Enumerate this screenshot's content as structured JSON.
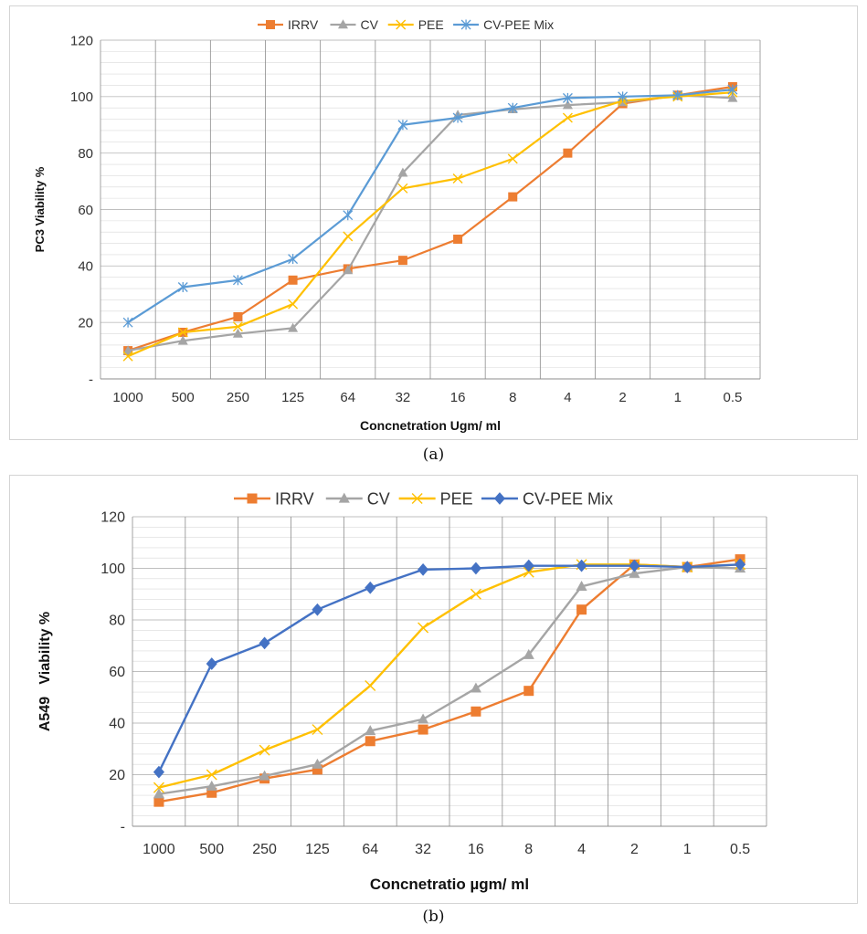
{
  "chart_data": [
    {
      "type": "line",
      "title": "",
      "caption": "(a)",
      "xlabel": "Concnetration Ugm/ ml",
      "ylabel": "PC3 Viability %",
      "categories": [
        "1000",
        "500",
        "250",
        "125",
        "64",
        "32",
        "16",
        "8",
        "4",
        "2",
        "1",
        "0.5"
      ],
      "yticks": [
        "-",
        "20",
        "40",
        "60",
        "80",
        "100",
        "120"
      ],
      "ylim": [
        0,
        120
      ],
      "grid": true,
      "legend": "top-center",
      "series": [
        {
          "name": "IRRV",
          "color": "#ED7D31",
          "marker": "square",
          "values": [
            10,
            16.5,
            22,
            35,
            39,
            42,
            49.5,
            64.5,
            80,
            97.5,
            100.5,
            103.5
          ]
        },
        {
          "name": "CV",
          "color": "#A5A5A5",
          "marker": "triangle",
          "values": [
            10,
            13.5,
            16,
            18,
            38.5,
            73,
            93.5,
            95.5,
            97,
            98,
            100.5,
            99.5
          ]
        },
        {
          "name": "PEE",
          "color": "#FFC000",
          "marker": "x",
          "values": [
            8,
            16.5,
            18.5,
            26.5,
            50.5,
            67.5,
            71,
            78,
            92.5,
            98.5,
            100,
            101.5
          ]
        },
        {
          "name": "CV-PEE Mix",
          "color": "#5B9BD5",
          "marker": "star",
          "values": [
            20,
            32.5,
            35,
            42.5,
            58,
            90,
            92.5,
            96,
            99.5,
            100,
            100.5,
            102.5
          ]
        }
      ]
    },
    {
      "type": "line",
      "title": "",
      "caption": "(b)",
      "xlabel": "Concnetratio µgm/ ml",
      "ylabel": "A549   Viability %",
      "categories": [
        "1000",
        "500",
        "250",
        "125",
        "64",
        "32",
        "16",
        "8",
        "4",
        "2",
        "1",
        "0.5"
      ],
      "yticks": [
        "-",
        "20",
        "40",
        "60",
        "80",
        "100",
        "120"
      ],
      "ylim": [
        0,
        120
      ],
      "grid": true,
      "legend": "top-center",
      "series": [
        {
          "name": "IRRV",
          "color": "#ED7D31",
          "marker": "square",
          "values": [
            9.5,
            13,
            18.5,
            22,
            33,
            37.5,
            44.5,
            52.5,
            84,
            101.5,
            100.5,
            103.5
          ]
        },
        {
          "name": "CV",
          "color": "#A5A5A5",
          "marker": "triangle",
          "values": [
            12.5,
            15.5,
            19.5,
            24,
            37,
            41.5,
            53.5,
            66.5,
            93,
            98,
            100.5,
            100
          ]
        },
        {
          "name": "PEE",
          "color": "#FFC000",
          "marker": "x",
          "values": [
            15,
            20,
            29.5,
            37.5,
            54.5,
            77,
            90,
            98.5,
            101.5,
            101.5,
            100.5,
            101.5
          ]
        },
        {
          "name": "CV-PEE Mix",
          "color": "#4472C4",
          "marker": "diamond",
          "values": [
            21,
            63,
            71,
            84,
            92.5,
            99.5,
            100,
            101,
            101,
            101,
            100.5,
            101.5
          ]
        }
      ]
    }
  ]
}
